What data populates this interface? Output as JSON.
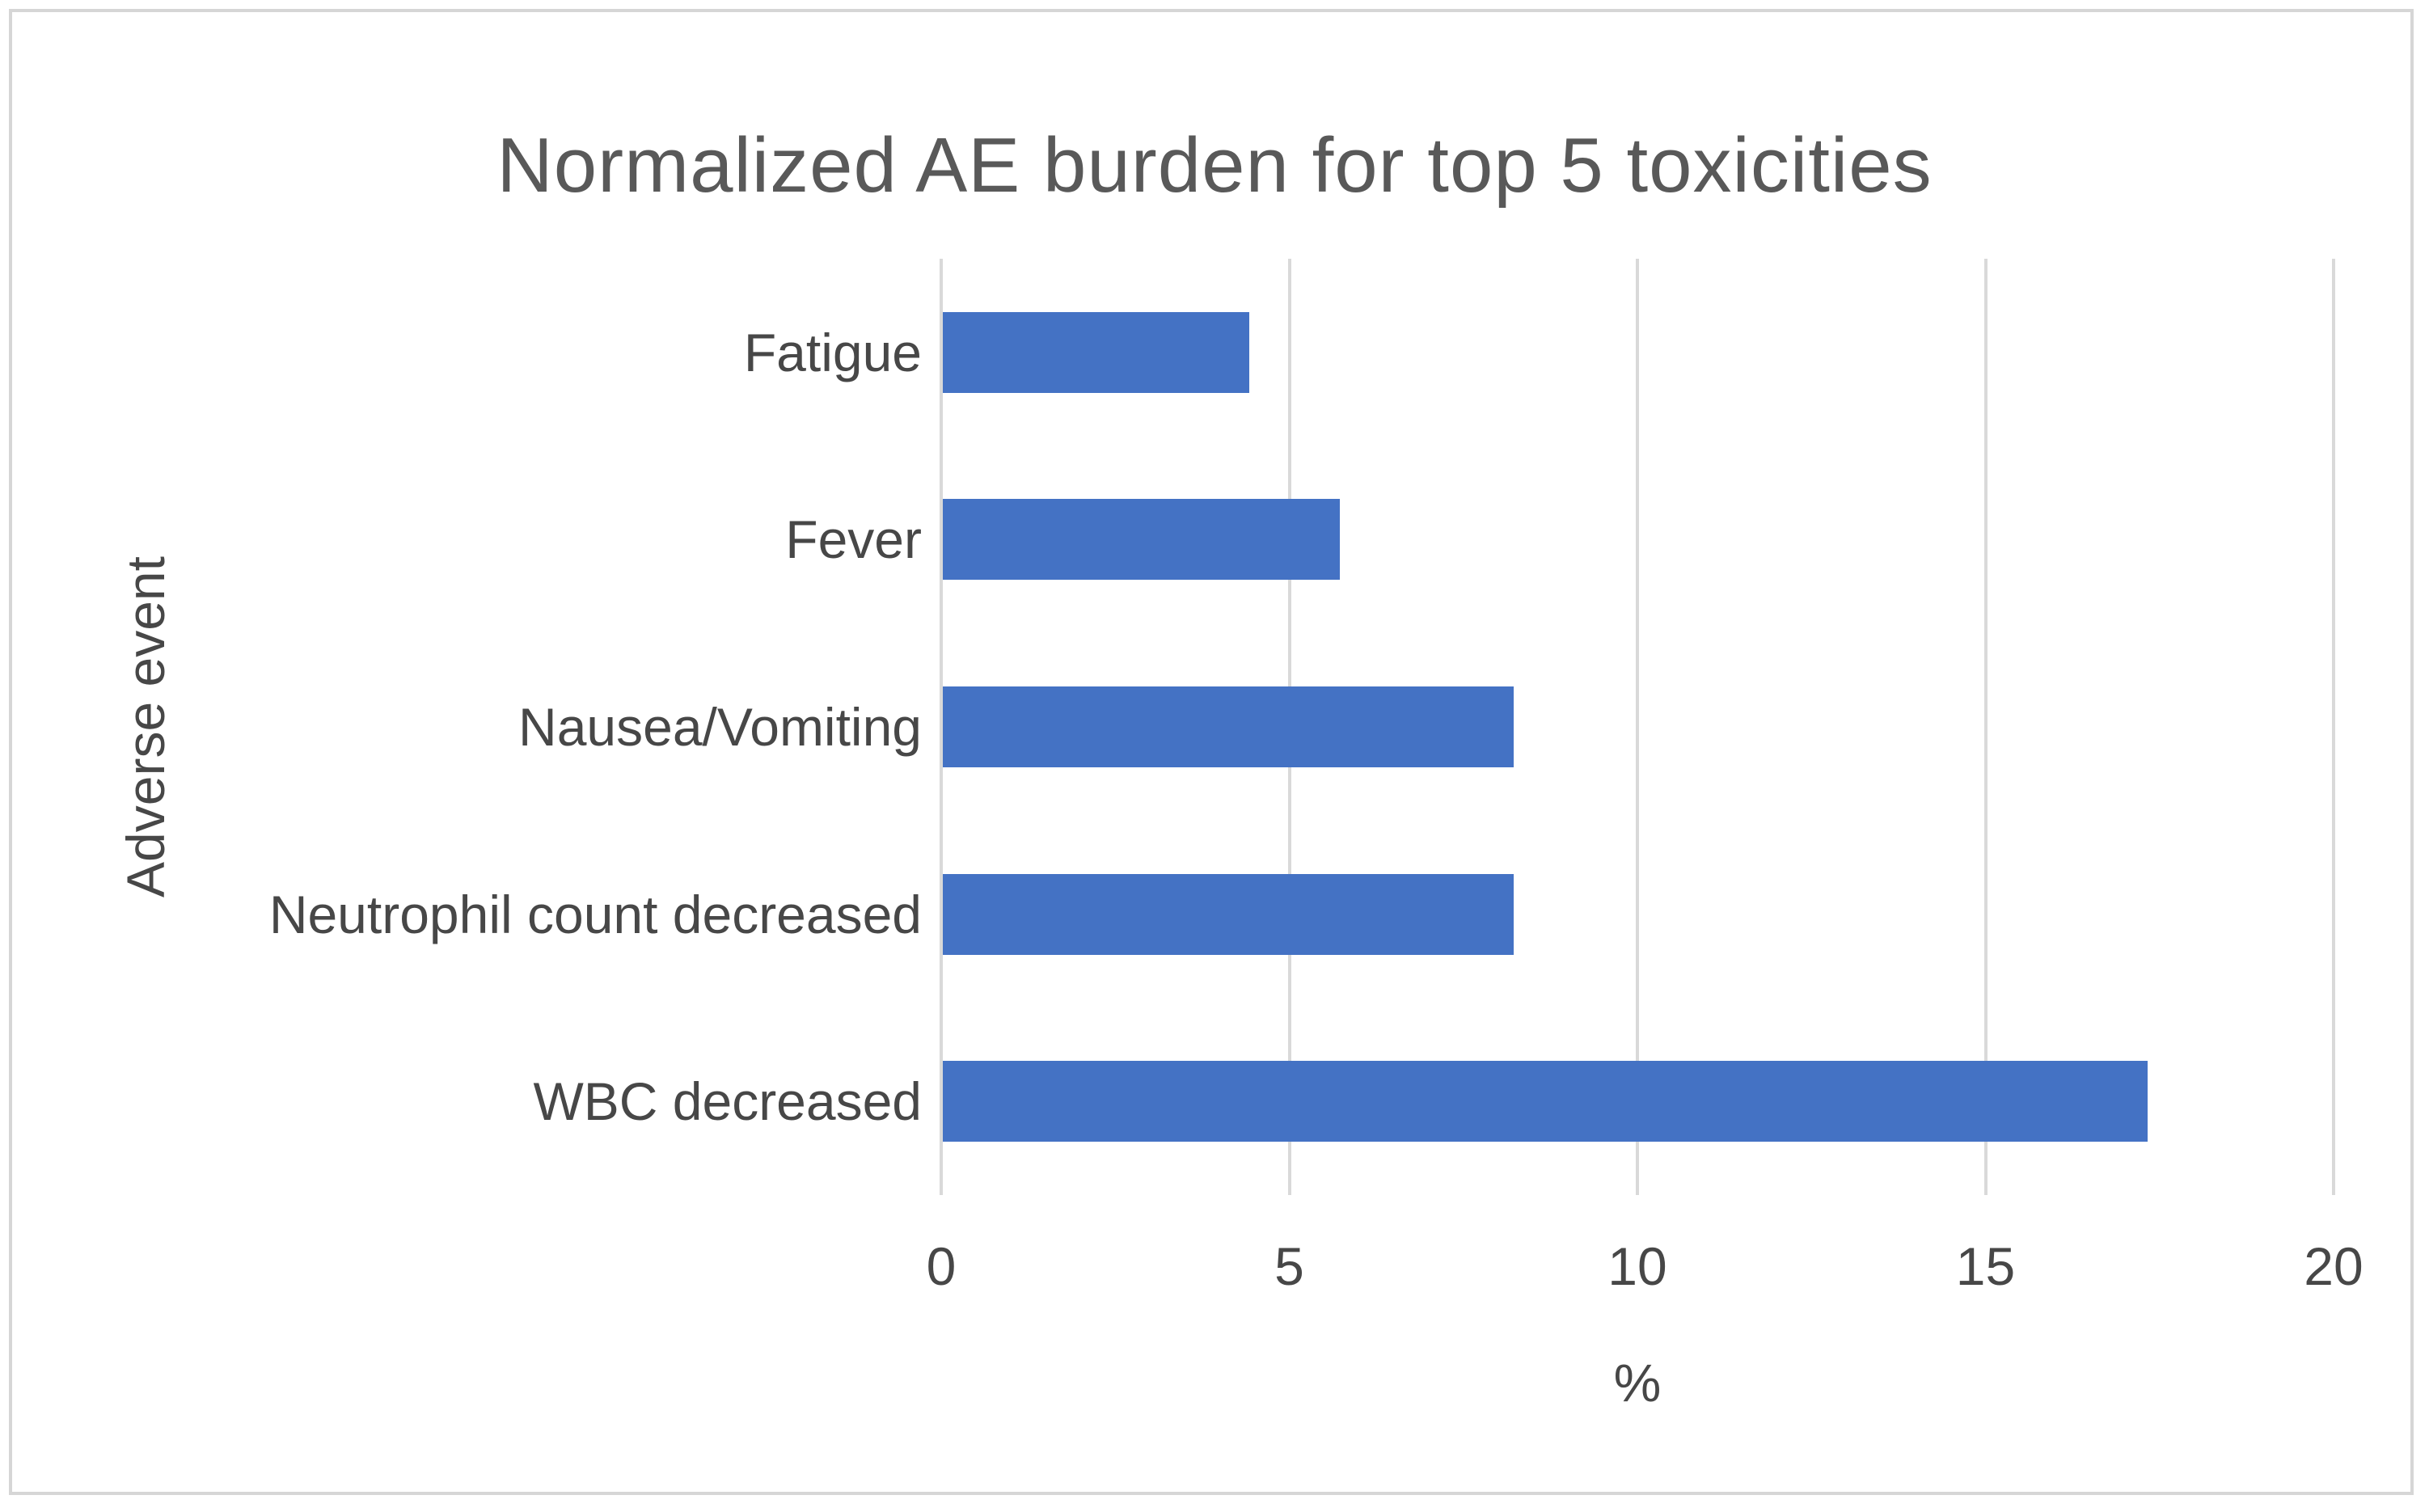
{
  "chart_data": {
    "type": "bar",
    "orientation": "horizontal",
    "title": "Normalized AE burden for top 5 toxicities",
    "ylabel": "Adverse event",
    "xlabel": "%",
    "categories": [
      "Fatigue",
      "Fever",
      "Nausea/Vomiting",
      "Neutrophil count decreased",
      "WBC decreased"
    ],
    "values": [
      4.4,
      5.7,
      8.2,
      8.2,
      17.3
    ],
    "xlim": [
      0,
      20
    ],
    "xticks": [
      0,
      5,
      10,
      15,
      20
    ],
    "grid": true,
    "legend": false,
    "colors": {
      "bar": "#4472C4",
      "gridline": "#D9D9D9",
      "title_text": "#595959",
      "axis_text": "#474747",
      "frame_border": "#D6D6D6",
      "background": "#FFFFFF"
    }
  }
}
